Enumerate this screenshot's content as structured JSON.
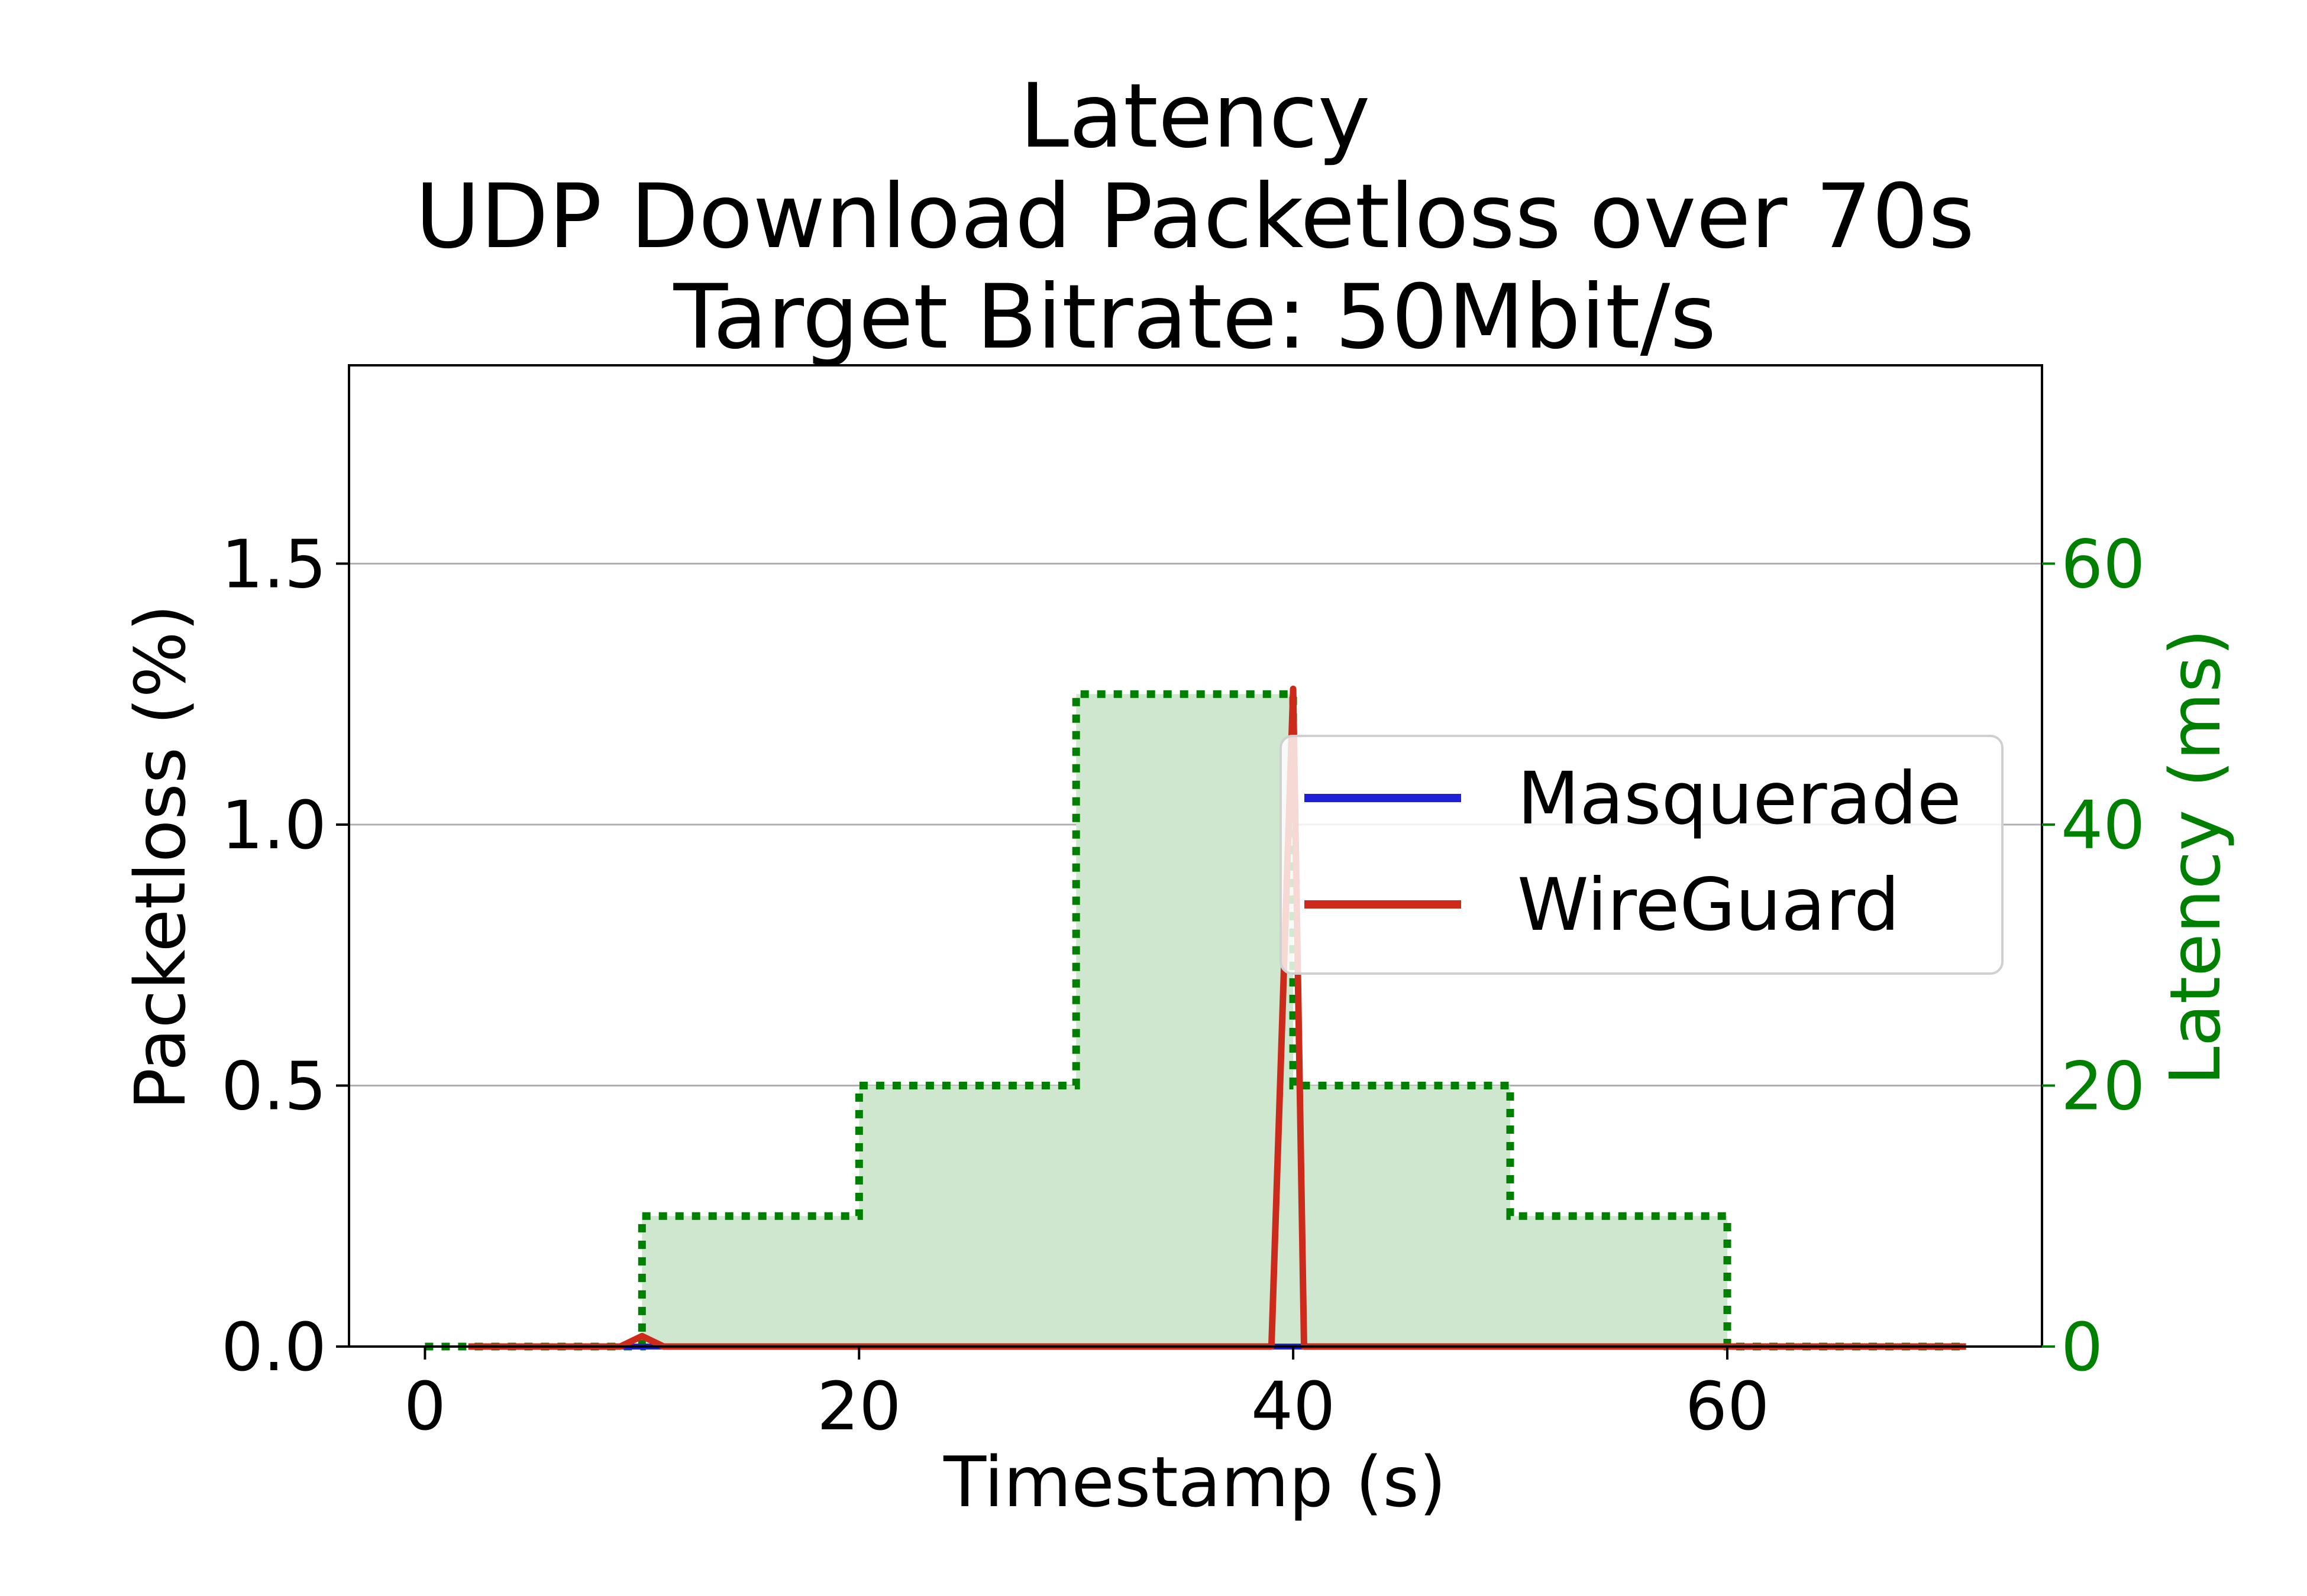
{
  "chart_data": {
    "type": "line",
    "title_lines": [
      "Latency",
      "UDP Download Packetloss over 70s",
      "Target Bitrate: 50Mbit/s"
    ],
    "xlabel": "Timestamp (s)",
    "ylabel": "Packetloss (%)",
    "y2label": "Latency (ms)",
    "xlim": [
      -3.5,
      74.5
    ],
    "ylim": [
      0,
      1.88
    ],
    "y2lim": [
      0,
      75.2
    ],
    "xticks": [
      0,
      20,
      40,
      60
    ],
    "yticks": [
      0.0,
      0.5,
      1.0,
      1.5
    ],
    "ytick_labels": [
      "0.0",
      "0.5",
      "1.0",
      "1.5"
    ],
    "y2ticks": [
      0,
      20,
      40,
      60
    ],
    "grid": "y-major",
    "legend_position": "center-right",
    "colors": {
      "masquerade": "#1f1fd6",
      "wireguard": "#cc2a1a",
      "latency_line": "#008000",
      "latency_fill": "#cfe6cf",
      "y2_axis": "#008000",
      "grid": "#b0b0b0"
    },
    "series": [
      {
        "name": "Masquerade",
        "x": [
          2,
          10,
          20,
          30,
          39,
          40,
          40.5,
          41,
          50,
          60,
          71
        ],
        "values": [
          0,
          0,
          0,
          0,
          0,
          0,
          0,
          0,
          0,
          0,
          0
        ]
      },
      {
        "name": "WireGuard",
        "x": [
          2,
          9,
          10,
          11,
          20,
          30,
          39,
          40,
          40.5,
          50,
          60,
          71
        ],
        "values": [
          0,
          0,
          0.02,
          0,
          0,
          0,
          0,
          1.26,
          0,
          0,
          0,
          0
        ]
      },
      {
        "axis": "y2",
        "style": "dotted-step-fill",
        "x": [
          0,
          10,
          10,
          20,
          20,
          30,
          30,
          40,
          40,
          50,
          50,
          60,
          60,
          71
        ],
        "values": [
          0,
          0,
          10,
          10,
          20,
          20,
          50,
          50,
          20,
          20,
          10,
          10,
          0,
          0
        ]
      }
    ]
  }
}
